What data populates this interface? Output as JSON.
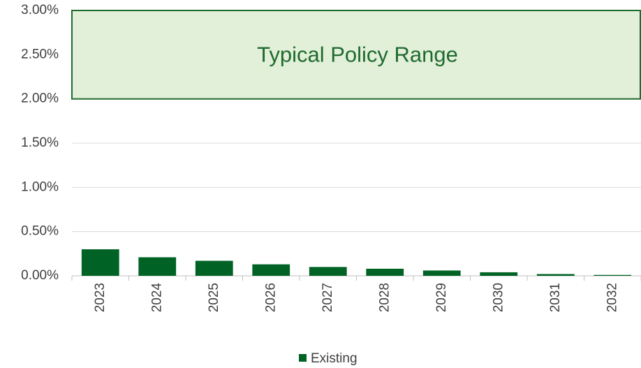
{
  "chart_data": {
    "type": "bar",
    "categories": [
      "2023",
      "2024",
      "2025",
      "2026",
      "2027",
      "2028",
      "2029",
      "2030",
      "2031",
      "2032"
    ],
    "series": [
      {
        "name": "Existing",
        "color": "#006325",
        "values": [
          0.3,
          0.21,
          0.17,
          0.13,
          0.1,
          0.08,
          0.06,
          0.04,
          0.02,
          0.01
        ]
      }
    ],
    "ylim": [
      0,
      3
    ],
    "yticks": [
      {
        "value": 0,
        "label": "0.00%"
      },
      {
        "value": 0.5,
        "label": "0.50%"
      },
      {
        "value": 1,
        "label": "1.00%"
      },
      {
        "value": 1.5,
        "label": "1.50%"
      },
      {
        "value": 2,
        "label": "2.00%"
      },
      {
        "value": 2.5,
        "label": "2.50%"
      },
      {
        "value": 3,
        "label": "3.00%"
      }
    ],
    "grid": true,
    "annotations": [
      {
        "text": "Typical Policy Range",
        "ymin": 2,
        "ymax": 3,
        "color": "#e2efd9",
        "border": "#1e6b2e"
      }
    ],
    "legend": "bottom"
  }
}
